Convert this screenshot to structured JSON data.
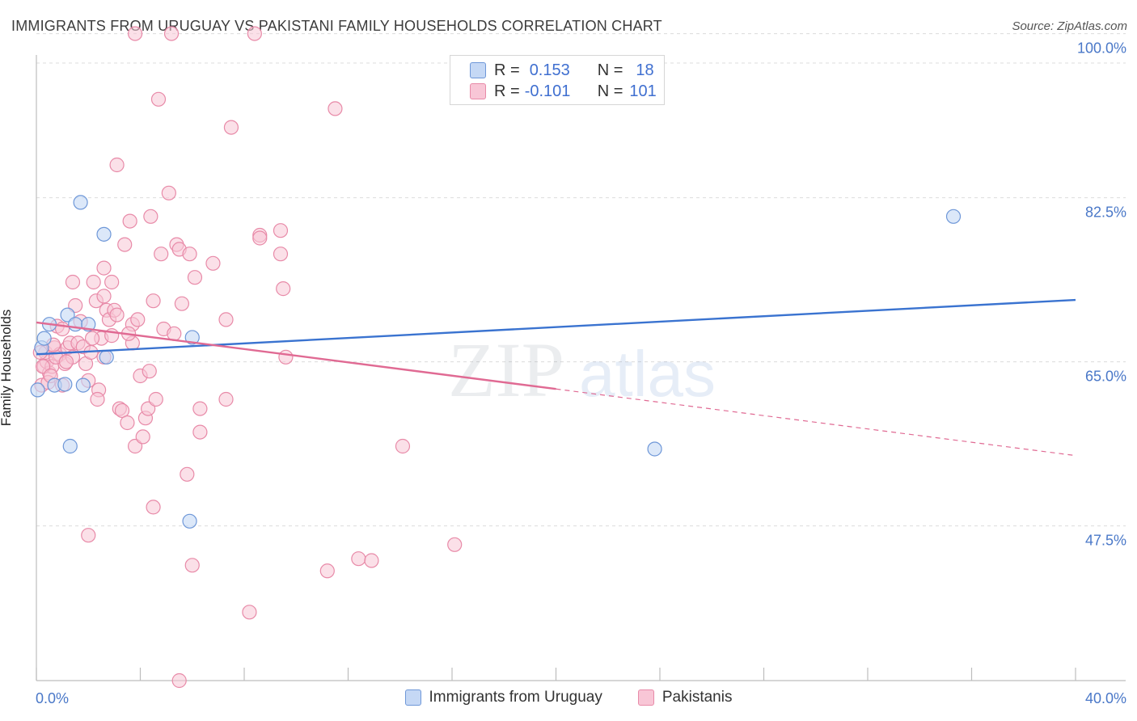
{
  "header": {
    "title": "IMMIGRANTS FROM URUGUAY VS PAKISTANI FAMILY HOUSEHOLDS CORRELATION CHART",
    "source": "Source: ZipAtlas.com"
  },
  "watermark": {
    "zip": "ZIP",
    "atlas": "atlas"
  },
  "legend_box": {
    "rows": [
      {
        "r_label": "R =",
        "r_value": "0.153",
        "n_label": "N =",
        "n_value": "18"
      },
      {
        "r_label": "R =",
        "r_value": "-0.101",
        "n_label": "N =",
        "n_value": "101"
      }
    ]
  },
  "colors": {
    "uruguay_fill": "#c5d8f5",
    "uruguay_stroke": "#6e97d8",
    "uruguay_line": "#3a73d0",
    "pakistani_fill": "#f8c6d6",
    "pakistani_stroke": "#e88aa8",
    "pakistani_line": "#e06a93",
    "tick_text": "#4a78c8",
    "grid": "#dcdcdc"
  },
  "chart_data": {
    "type": "scatter",
    "title": "IMMIGRANTS FROM URUGUAY VS PAKISTANI FAMILY HOUSEHOLDS CORRELATION CHART",
    "xlabel": "",
    "ylabel": "Family Households",
    "xlim": [
      0,
      40
    ],
    "ylim": [
      31,
      101
    ],
    "x_tick_labels": [
      "0.0%",
      "40.0%"
    ],
    "y_ticks": [
      47.5,
      65.0,
      82.5,
      100.0
    ],
    "y_tick_labels": [
      "47.5%",
      "65.0%",
      "82.5%",
      "100.0%"
    ],
    "series": [
      {
        "name": "Immigrants from Uruguay",
        "r": 0.153,
        "n": 18,
        "points": [
          [
            0.05,
            62.0
          ],
          [
            0.2,
            66.5
          ],
          [
            0.3,
            67.5
          ],
          [
            0.5,
            69.0
          ],
          [
            0.7,
            62.5
          ],
          [
            1.1,
            62.6
          ],
          [
            1.3,
            56.0
          ],
          [
            1.2,
            70.0
          ],
          [
            1.5,
            69.0
          ],
          [
            1.8,
            62.5
          ],
          [
            1.7,
            82.0
          ],
          [
            2.0,
            69.0
          ],
          [
            2.6,
            78.6
          ],
          [
            2.7,
            65.5
          ],
          [
            6.0,
            67.6
          ],
          [
            5.9,
            48.0
          ],
          [
            23.8,
            55.7
          ],
          [
            35.3,
            80.5
          ]
        ],
        "trend": {
          "x0": 0,
          "y0": 65.8,
          "x1": 40,
          "y1": 71.6
        }
      },
      {
        "name": "Pakistanis",
        "r": -0.101,
        "n": 101,
        "points": [
          [
            0.2,
            62.5
          ],
          [
            0.3,
            64.5
          ],
          [
            0.4,
            65.0
          ],
          [
            0.5,
            63.8
          ],
          [
            0.35,
            66.0
          ],
          [
            0.6,
            64.5
          ],
          [
            0.7,
            66.5
          ],
          [
            0.8,
            68.8
          ],
          [
            0.9,
            65.8
          ],
          [
            1.0,
            62.5
          ],
          [
            1.1,
            64.8
          ],
          [
            1.2,
            66.5
          ],
          [
            1.3,
            67.0
          ],
          [
            1.4,
            65.5
          ],
          [
            1.5,
            71.0
          ],
          [
            1.4,
            73.5
          ],
          [
            1.6,
            67.0
          ],
          [
            1.7,
            69.3
          ],
          [
            1.8,
            66.6
          ],
          [
            1.9,
            64.8
          ],
          [
            2.0,
            63.0
          ],
          [
            2.1,
            66.0
          ],
          [
            2.2,
            73.5
          ],
          [
            2.3,
            71.5
          ],
          [
            2.4,
            62.0
          ],
          [
            2.5,
            67.5
          ],
          [
            2.6,
            65.5
          ],
          [
            2.6,
            72.0
          ],
          [
            2.6,
            75.0
          ],
          [
            2.7,
            70.5
          ],
          [
            2.8,
            69.5
          ],
          [
            2.9,
            73.5
          ],
          [
            2.9,
            67.8
          ],
          [
            3.0,
            70.5
          ],
          [
            3.1,
            70.0
          ],
          [
            3.1,
            86.0
          ],
          [
            3.2,
            60.0
          ],
          [
            3.3,
            59.8
          ],
          [
            3.4,
            77.5
          ],
          [
            3.5,
            58.5
          ],
          [
            3.6,
            80.0
          ],
          [
            3.7,
            69.0
          ],
          [
            3.7,
            67.0
          ],
          [
            3.8,
            56.0
          ],
          [
            3.9,
            69.5
          ],
          [
            4.0,
            63.5
          ],
          [
            4.1,
            57.0
          ],
          [
            4.2,
            59.0
          ],
          [
            4.3,
            60.0
          ],
          [
            4.4,
            80.5
          ],
          [
            4.5,
            49.5
          ],
          [
            4.5,
            71.5
          ],
          [
            4.6,
            61.0
          ],
          [
            4.7,
            93.0
          ],
          [
            4.8,
            76.5
          ],
          [
            4.9,
            68.5
          ],
          [
            5.1,
            83.0
          ],
          [
            5.3,
            68.0
          ],
          [
            5.4,
            77.5
          ],
          [
            5.5,
            77.0
          ],
          [
            5.6,
            71.2
          ],
          [
            5.8,
            53.0
          ],
          [
            5.9,
            76.5
          ],
          [
            6.0,
            43.3
          ],
          [
            6.1,
            74.0
          ],
          [
            6.3,
            60.0
          ],
          [
            6.3,
            57.5
          ],
          [
            6.8,
            75.5
          ],
          [
            7.3,
            61.0
          ],
          [
            7.3,
            69.5
          ],
          [
            7.5,
            90.0
          ],
          [
            8.2,
            38.3
          ],
          [
            8.6,
            78.5
          ],
          [
            8.6,
            78.2
          ],
          [
            9.4,
            79.0
          ],
          [
            9.4,
            76.5
          ],
          [
            9.5,
            72.8
          ],
          [
            9.6,
            65.5
          ],
          [
            11.2,
            42.7
          ],
          [
            11.5,
            92.0
          ],
          [
            12.4,
            44.0
          ],
          [
            12.9,
            43.8
          ],
          [
            14.1,
            56.0
          ],
          [
            16.1,
            45.5
          ],
          [
            2.0,
            46.5
          ],
          [
            5.5,
            31.0
          ],
          [
            3.8,
            100.0
          ],
          [
            5.2,
            100.0
          ],
          [
            8.4,
            100.0
          ],
          [
            0.45,
            62.8
          ],
          [
            1.0,
            68.5
          ],
          [
            0.25,
            64.5
          ],
          [
            0.55,
            63.5
          ],
          [
            0.75,
            65.5
          ],
          [
            0.15,
            66.0
          ],
          [
            1.15,
            65.0
          ],
          [
            2.15,
            67.5
          ],
          [
            3.55,
            68.0
          ],
          [
            0.65,
            66.8
          ],
          [
            4.35,
            64.0
          ],
          [
            2.35,
            61.0
          ]
        ],
        "trend": {
          "x0": 0,
          "y0": 69.2,
          "x1": 40,
          "y1": 55.0,
          "solid_until_x": 20
        }
      }
    ]
  },
  "bottom_legend": {
    "items": [
      {
        "label": "Immigrants from Uruguay"
      },
      {
        "label": "Pakistanis"
      }
    ]
  }
}
